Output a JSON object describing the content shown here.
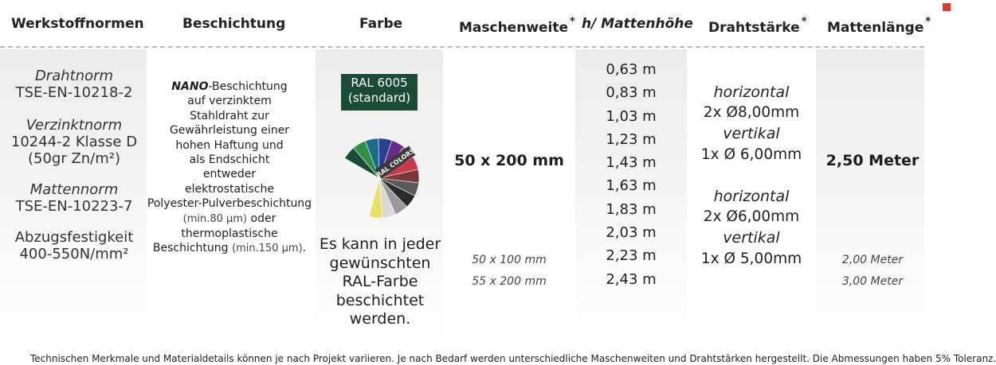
{
  "headers": {
    "werkstoffnormen": "Werkstoffnormen",
    "beschichtung": "Beschichtung",
    "farbe": "Farbe",
    "maschenweite": "Maschenweite",
    "mattenhoehe": "h/ Mattenhöhe",
    "drahtstaerke": "Drahtstärke",
    "mattenlaenge": "Mattenlänge",
    "asterisk": "*"
  },
  "norms": [
    {
      "label": "Drahtnorm",
      "value": "TSE-EN-10218-2"
    },
    {
      "label": "Verzinktnorm",
      "value": "10244-2 Klasse D",
      "value2": "(50gr Zn/m²)"
    },
    {
      "label": "Mattennorm",
      "value": "TSE-EN-10223-7"
    },
    {
      "label": "Abzugsfestigkeit",
      "value": "400-550N/mm²"
    }
  ],
  "coating": {
    "nano": "NANO",
    "line1_rest": "-Beschichtung",
    "lines": [
      "auf verzinktem",
      "Stahldraht zur",
      "Gewährleistung einer",
      "hohen Haftung und",
      "als Endschicht",
      "entweder",
      "elektrostatische",
      "Polyester-Pulverbeschichtung"
    ],
    "min80": "(min.80 µm)",
    "oder": " oder",
    "thermo": "thermoplastische",
    "beschichtung": "Beschichtung ",
    "min150": "(min.150 µm)",
    "end": "."
  },
  "color": {
    "ral_code": "RAL 6005",
    "ral_note": "(standard)",
    "fan_label": "RAL COLORS",
    "fan_colors": [
      "#1a4b34",
      "#2f8f46",
      "#1d6a8a",
      "#2a3f8f",
      "#6a2a8a",
      "#b02a7a",
      "#c93a4a",
      "#7a3a3a",
      "#5a5a5a",
      "#2b2b2b",
      "#9a9a9a",
      "#d8d8d8",
      "#e8e06a"
    ],
    "text_lines": [
      "Es kann in jeder",
      "gewünschten",
      "RAL-Farbe",
      "beschichtet",
      "werden."
    ]
  },
  "mesh": {
    "main": "50 x 200 mm",
    "alts": [
      "50 x 100 mm",
      "55 x 200 mm"
    ]
  },
  "heights": [
    "0,63 m",
    "0,83 m",
    "1,03 m",
    "1,23 m",
    "1,43 m",
    "1,63 m",
    "1,83 m",
    "2,03 m",
    "2,23 m",
    "2,43 m"
  ],
  "wire": {
    "group1": {
      "h_label": "horizontal",
      "h_value": "2x Ø8,00mm",
      "v_label": "vertikal",
      "v_value": "1x Ø 6,00mm"
    },
    "group2": {
      "h_label": "horizontal",
      "h_value": "2x Ø6,00mm",
      "v_label": "vertikal",
      "v_value": "1x Ø 5,00mm"
    }
  },
  "length": {
    "main": "2,50 Meter",
    "alts": [
      "2,00 Meter",
      "3,00 Meter"
    ]
  },
  "footnote": "Technischen Merkmale und Materialdetails können je nach Projekt variieren. Je nach Bedarf werden unterschiedliche Maschenweiten und Drahtstärken hergestellt. Die Abmessungen haben 5% Toleranz."
}
